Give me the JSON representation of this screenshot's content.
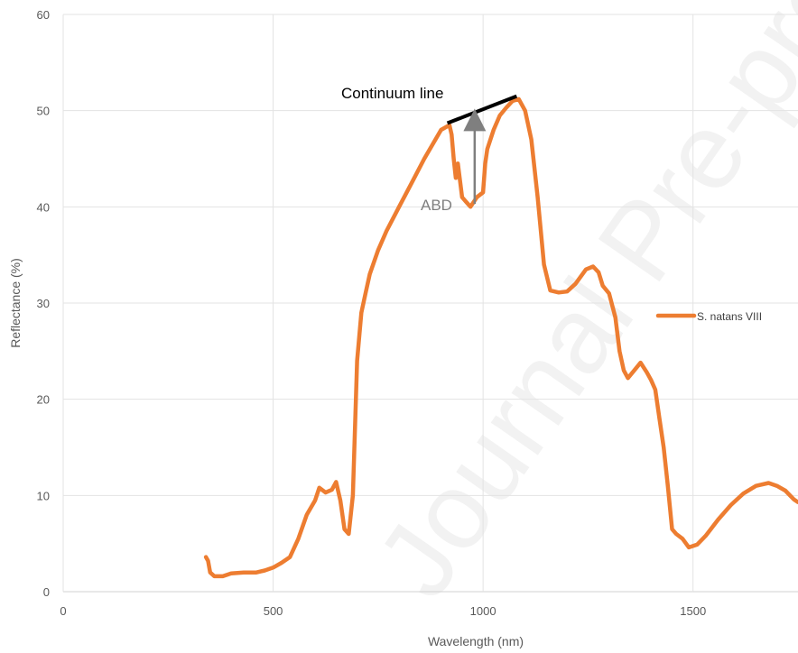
{
  "watermark": "Journal Pre-proof",
  "chart_data": {
    "type": "line",
    "xlabel": "Wavelength (nm)",
    "ylabel": "Reflectance (%)",
    "xlim": [
      0,
      1750
    ],
    "ylim": [
      0,
      60
    ],
    "x_ticks": [
      0,
      500,
      1000,
      1500
    ],
    "y_ticks": [
      0,
      10,
      20,
      30,
      40,
      50,
      60
    ],
    "grid": true,
    "legend_position": "right",
    "series": [
      {
        "name": "S. natans VIII",
        "color": "#ED7D31",
        "points": [
          [
            340,
            3.6
          ],
          [
            345,
            3.2
          ],
          [
            350,
            2.0
          ],
          [
            360,
            1.6
          ],
          [
            380,
            1.6
          ],
          [
            400,
            1.9
          ],
          [
            430,
            2.0
          ],
          [
            460,
            2.0
          ],
          [
            480,
            2.2
          ],
          [
            500,
            2.5
          ],
          [
            520,
            3.0
          ],
          [
            540,
            3.6
          ],
          [
            560,
            5.5
          ],
          [
            580,
            8.0
          ],
          [
            600,
            9.5
          ],
          [
            610,
            10.8
          ],
          [
            625,
            10.3
          ],
          [
            640,
            10.6
          ],
          [
            650,
            11.4
          ],
          [
            660,
            9.5
          ],
          [
            670,
            6.5
          ],
          [
            680,
            6.0
          ],
          [
            690,
            10.0
          ],
          [
            700,
            24.0
          ],
          [
            710,
            29.0
          ],
          [
            720,
            31.0
          ],
          [
            730,
            33.0
          ],
          [
            750,
            35.5
          ],
          [
            770,
            37.5
          ],
          [
            800,
            40.0
          ],
          [
            830,
            42.5
          ],
          [
            860,
            45.0
          ],
          [
            880,
            46.5
          ],
          [
            900,
            48.0
          ],
          [
            920,
            48.5
          ],
          [
            925,
            47.5
          ],
          [
            930,
            45.0
          ],
          [
            935,
            43.0
          ],
          [
            940,
            44.5
          ],
          [
            950,
            41.0
          ],
          [
            960,
            40.5
          ],
          [
            970,
            40.0
          ],
          [
            985,
            41.0
          ],
          [
            1000,
            41.5
          ],
          [
            1005,
            44.5
          ],
          [
            1010,
            46.0
          ],
          [
            1025,
            48.0
          ],
          [
            1040,
            49.5
          ],
          [
            1055,
            50.3
          ],
          [
            1070,
            51.0
          ],
          [
            1085,
            51.2
          ],
          [
            1100,
            50.0
          ],
          [
            1115,
            47.0
          ],
          [
            1130,
            41.0
          ],
          [
            1145,
            34.0
          ],
          [
            1160,
            31.3
          ],
          [
            1180,
            31.1
          ],
          [
            1200,
            31.2
          ],
          [
            1220,
            32.0
          ],
          [
            1245,
            33.5
          ],
          [
            1262,
            33.8
          ],
          [
            1275,
            33.2
          ],
          [
            1285,
            31.8
          ],
          [
            1300,
            31.0
          ],
          [
            1315,
            28.5
          ],
          [
            1325,
            25.0
          ],
          [
            1335,
            23.0
          ],
          [
            1345,
            22.2
          ],
          [
            1360,
            23.0
          ],
          [
            1375,
            23.8
          ],
          [
            1390,
            22.8
          ],
          [
            1400,
            22.0
          ],
          [
            1410,
            21.0
          ],
          [
            1420,
            18.0
          ],
          [
            1430,
            15.0
          ],
          [
            1440,
            11.0
          ],
          [
            1450,
            6.5
          ],
          [
            1460,
            6.0
          ],
          [
            1475,
            5.5
          ],
          [
            1490,
            4.6
          ],
          [
            1510,
            4.9
          ],
          [
            1530,
            5.8
          ],
          [
            1560,
            7.5
          ],
          [
            1590,
            9.0
          ],
          [
            1620,
            10.2
          ],
          [
            1650,
            11.0
          ],
          [
            1680,
            11.3
          ],
          [
            1700,
            11.0
          ],
          [
            1720,
            10.5
          ],
          [
            1740,
            9.6
          ],
          [
            1750,
            9.3
          ]
        ]
      }
    ],
    "annotations": {
      "continuum_label": "Continuum line",
      "continuum_line": [
        [
          915,
          48.7
        ],
        [
          1080,
          51.5
        ]
      ],
      "abd_label": "ABD",
      "abd_arrow": {
        "x": 980,
        "y_from": 40.3,
        "y_to": 49.6
      }
    }
  }
}
